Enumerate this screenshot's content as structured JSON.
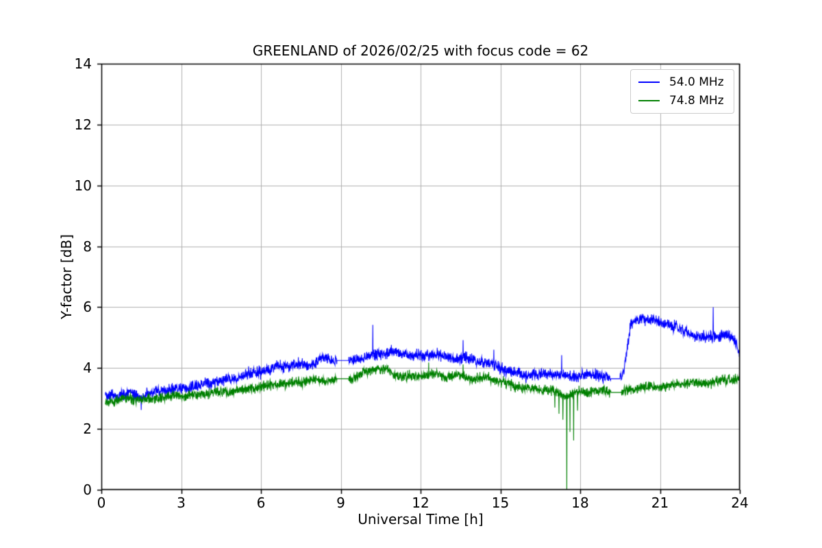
{
  "figure": {
    "background": "#ffffff",
    "axes_edge_color": "#000000"
  },
  "chart_data": {
    "type": "line",
    "title": "GREENLAND of 2026/02/25 with focus code = 62",
    "xlabel": "Universal Time [h]",
    "ylabel": "Y-factor [dB]",
    "xlim": [
      0,
      24
    ],
    "ylim": [
      0,
      14
    ],
    "xticks": [
      0,
      3,
      6,
      9,
      12,
      15,
      18,
      21,
      24
    ],
    "yticks": [
      0,
      2,
      4,
      6,
      8,
      10,
      12,
      14
    ],
    "grid": true,
    "grid_color": "#b0b0b0",
    "legend_position": "upper right",
    "x_start": 0.15,
    "x_end": 24.0,
    "series": [
      {
        "name": "54.0 MHz",
        "color": "#0000ff",
        "noise": 0.13,
        "keypoints": [
          [
            0.15,
            3.1
          ],
          [
            0.5,
            3.1
          ],
          [
            1.0,
            3.15
          ],
          [
            1.5,
            3.05
          ],
          [
            2.0,
            3.2
          ],
          [
            2.5,
            3.3
          ],
          [
            3.0,
            3.3
          ],
          [
            3.5,
            3.4
          ],
          [
            4.0,
            3.5
          ],
          [
            4.5,
            3.6
          ],
          [
            5.0,
            3.65
          ],
          [
            5.5,
            3.8
          ],
          [
            6.0,
            3.9
          ],
          [
            6.5,
            4.0
          ],
          [
            7.0,
            4.1
          ],
          [
            7.5,
            4.1
          ],
          [
            8.0,
            4.15
          ],
          [
            8.4,
            4.35
          ],
          [
            8.6,
            4.25
          ],
          [
            8.85,
            4.25
          ],
          [
            9.3,
            4.25
          ],
          [
            9.6,
            4.3
          ],
          [
            10.0,
            4.35
          ],
          [
            10.5,
            4.5
          ],
          [
            11.0,
            4.5
          ],
          [
            11.5,
            4.45
          ],
          [
            12.0,
            4.4
          ],
          [
            12.5,
            4.45
          ],
          [
            13.0,
            4.35
          ],
          [
            13.5,
            4.3
          ],
          [
            14.0,
            4.3
          ],
          [
            14.5,
            4.15
          ],
          [
            15.0,
            4.0
          ],
          [
            15.5,
            3.85
          ],
          [
            16.0,
            3.75
          ],
          [
            16.5,
            3.8
          ],
          [
            17.0,
            3.8
          ],
          [
            17.5,
            3.75
          ],
          [
            18.0,
            3.75
          ],
          [
            18.5,
            3.8
          ],
          [
            19.0,
            3.7
          ],
          [
            19.15,
            3.65
          ],
          [
            19.5,
            3.65
          ],
          [
            19.65,
            3.9
          ],
          [
            19.75,
            4.6
          ],
          [
            19.9,
            5.35
          ],
          [
            20.1,
            5.6
          ],
          [
            20.4,
            5.65
          ],
          [
            20.7,
            5.6
          ],
          [
            21.0,
            5.5
          ],
          [
            21.4,
            5.45
          ],
          [
            21.8,
            5.25
          ],
          [
            22.2,
            5.1
          ],
          [
            22.6,
            5.0
          ],
          [
            23.0,
            5.05
          ],
          [
            23.4,
            5.1
          ],
          [
            23.7,
            5.0
          ],
          [
            23.9,
            4.8
          ],
          [
            24.0,
            4.45
          ]
        ],
        "spikes": [
          [
            1.5,
            2.62
          ],
          [
            10.2,
            5.42
          ],
          [
            13.6,
            4.92
          ],
          [
            14.75,
            4.6
          ],
          [
            17.3,
            4.42
          ],
          [
            23.0,
            6.0
          ]
        ],
        "flat_segments": [
          [
            8.85,
            9.3,
            4.25
          ],
          [
            19.15,
            19.5,
            3.65
          ]
        ]
      },
      {
        "name": "74.8 MHz",
        "color": "#008000",
        "noise": 0.11,
        "keypoints": [
          [
            0.15,
            2.9
          ],
          [
            0.5,
            2.95
          ],
          [
            1.0,
            3.0
          ],
          [
            1.5,
            2.95
          ],
          [
            2.0,
            3.0
          ],
          [
            2.5,
            3.05
          ],
          [
            3.0,
            3.1
          ],
          [
            3.5,
            3.1
          ],
          [
            4.0,
            3.2
          ],
          [
            4.5,
            3.2
          ],
          [
            5.0,
            3.25
          ],
          [
            5.5,
            3.3
          ],
          [
            6.0,
            3.4
          ],
          [
            6.5,
            3.45
          ],
          [
            7.0,
            3.5
          ],
          [
            7.5,
            3.55
          ],
          [
            8.0,
            3.6
          ],
          [
            8.5,
            3.6
          ],
          [
            8.85,
            3.65
          ],
          [
            9.3,
            3.65
          ],
          [
            9.6,
            3.7
          ],
          [
            10.0,
            3.9
          ],
          [
            10.3,
            4.0
          ],
          [
            10.7,
            3.95
          ],
          [
            11.0,
            3.8
          ],
          [
            11.5,
            3.7
          ],
          [
            12.0,
            3.75
          ],
          [
            12.5,
            3.8
          ],
          [
            13.0,
            3.7
          ],
          [
            13.5,
            3.75
          ],
          [
            14.0,
            3.6
          ],
          [
            14.5,
            3.7
          ],
          [
            15.0,
            3.55
          ],
          [
            15.5,
            3.4
          ],
          [
            16.0,
            3.35
          ],
          [
            16.5,
            3.3
          ],
          [
            17.0,
            3.25
          ],
          [
            17.5,
            3.1
          ],
          [
            18.0,
            3.2
          ],
          [
            18.5,
            3.25
          ],
          [
            19.0,
            3.25
          ],
          [
            19.15,
            3.2
          ],
          [
            19.55,
            3.2
          ],
          [
            20.0,
            3.3
          ],
          [
            20.5,
            3.35
          ],
          [
            21.0,
            3.4
          ],
          [
            21.5,
            3.45
          ],
          [
            22.0,
            3.5
          ],
          [
            22.5,
            3.5
          ],
          [
            23.0,
            3.55
          ],
          [
            23.5,
            3.6
          ],
          [
            24.0,
            3.65
          ]
        ],
        "spikes": [
          [
            12.3,
            4.18
          ],
          [
            13.6,
            4.12
          ],
          [
            17.05,
            2.7
          ],
          [
            17.2,
            2.5
          ],
          [
            17.35,
            2.3
          ],
          [
            17.5,
            0.02
          ],
          [
            17.62,
            1.9
          ],
          [
            17.75,
            1.62
          ],
          [
            17.9,
            2.6
          ]
        ],
        "flat_segments": [
          [
            8.85,
            9.3,
            3.65
          ],
          [
            19.15,
            19.55,
            3.2
          ]
        ]
      }
    ]
  }
}
